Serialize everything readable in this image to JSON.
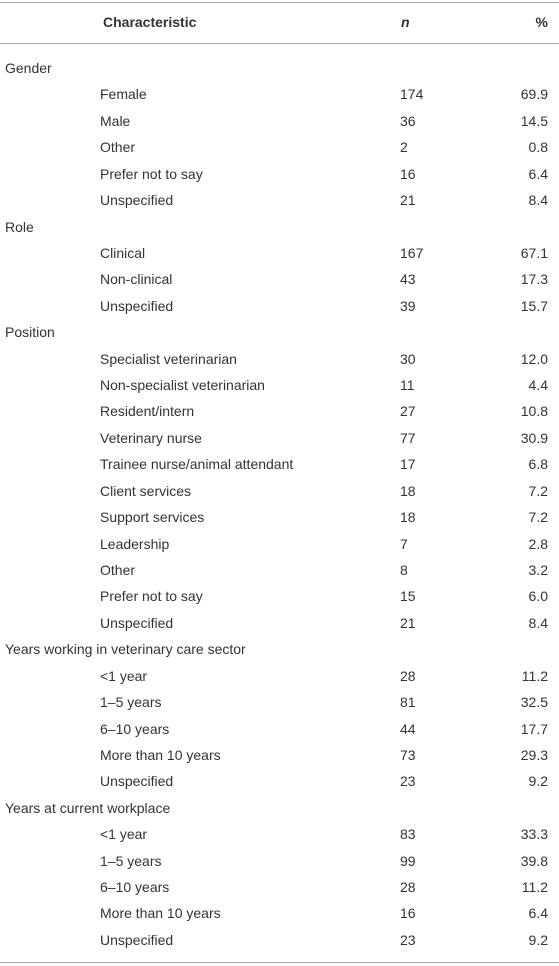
{
  "header": {
    "characteristic": "Characteristic",
    "n": "n",
    "percent": "%"
  },
  "groups": [
    {
      "label": "Gender",
      "rows": [
        {
          "label": "Female",
          "n": "174",
          "percent": "69.9"
        },
        {
          "label": "Male",
          "n": "36",
          "percent": "14.5"
        },
        {
          "label": "Other",
          "n": "2",
          "percent": "0.8"
        },
        {
          "label": "Prefer not to say",
          "n": "16",
          "percent": "6.4"
        },
        {
          "label": "Unspecified",
          "n": "21",
          "percent": "8.4"
        }
      ]
    },
    {
      "label": "Role",
      "rows": [
        {
          "label": "Clinical",
          "n": "167",
          "percent": "67.1"
        },
        {
          "label": "Non-clinical",
          "n": "43",
          "percent": "17.3"
        },
        {
          "label": "Unspecified",
          "n": "39",
          "percent": "15.7"
        }
      ]
    },
    {
      "label": "Position",
      "rows": [
        {
          "label": "Specialist veterinarian",
          "n": "30",
          "percent": "12.0"
        },
        {
          "label": "Non-specialist veterinarian",
          "n": "11",
          "percent": "4.4"
        },
        {
          "label": "Resident/intern",
          "n": "27",
          "percent": "10.8"
        },
        {
          "label": "Veterinary nurse",
          "n": "77",
          "percent": "30.9"
        },
        {
          "label": "Trainee nurse/animal attendant",
          "n": "17",
          "percent": "6.8"
        },
        {
          "label": "Client services",
          "n": "18",
          "percent": "7.2"
        },
        {
          "label": "Support services",
          "n": "18",
          "percent": "7.2"
        },
        {
          "label": "Leadership",
          "n": "7",
          "percent": "2.8"
        },
        {
          "label": "Other",
          "n": "8",
          "percent": "3.2"
        },
        {
          "label": "Prefer not to say",
          "n": "15",
          "percent": "6.0"
        },
        {
          "label": "Unspecified",
          "n": "21",
          "percent": "8.4"
        }
      ]
    },
    {
      "label": "Years working in veterinary care sector",
      "rows": [
        {
          "label": "<1 year",
          "n": "28",
          "percent": "11.2"
        },
        {
          "label": "1–5 years",
          "n": "81",
          "percent": "32.5"
        },
        {
          "label": "6–10 years",
          "n": "44",
          "percent": "17.7"
        },
        {
          "label": "More than 10 years",
          "n": "73",
          "percent": "29.3"
        },
        {
          "label": "Unspecified",
          "n": "23",
          "percent": "9.2"
        }
      ]
    },
    {
      "label": "Years at current workplace",
      "rows": [
        {
          "label": "<1 year",
          "n": "83",
          "percent": "33.3"
        },
        {
          "label": "1–5 years",
          "n": "99",
          "percent": "39.8"
        },
        {
          "label": "6–10 years",
          "n": "28",
          "percent": "11.2"
        },
        {
          "label": "More than 10 years",
          "n": "16",
          "percent": "6.4"
        },
        {
          "label": "Unspecified",
          "n": "23",
          "percent": "9.2"
        }
      ]
    }
  ]
}
